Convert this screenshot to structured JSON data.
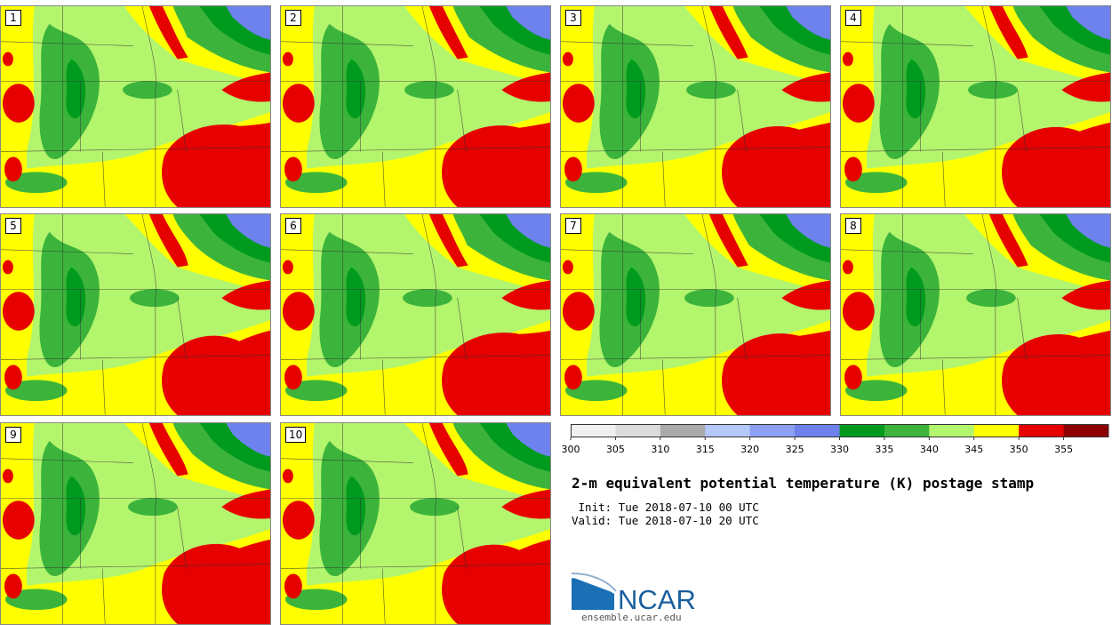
{
  "title": "2-m equivalent potential temperature (K) postage stamp",
  "init_line": " Init: Tue 2018-07-10 00 UTC",
  "valid_line": "Valid: Tue 2018-07-10 20 UTC",
  "members": [
    "1",
    "2",
    "3",
    "4",
    "5",
    "6",
    "7",
    "8",
    "9",
    "10"
  ],
  "colorbar": {
    "colors": [
      "#f0f0f0",
      "#dcdcdc",
      "#aaaaaa",
      "#b4c8fa",
      "#8ca0f5",
      "#6e82ee",
      "#009b1e",
      "#3cb43c",
      "#b4f56e",
      "#ffff00",
      "#e60000",
      "#8c0000"
    ],
    "ticks": [
      "300",
      "305",
      "310",
      "315",
      "320",
      "325",
      "330",
      "335",
      "340",
      "345",
      "350",
      "355"
    ]
  },
  "colors": {
    "yellow": "#ffff00",
    "light_green": "#b4f56e",
    "green": "#3cb43c",
    "dark_green": "#009b1e",
    "red": "#e60000",
    "blue": "#6e82ee"
  },
  "logo": {
    "name": "NCAR",
    "url_text": "ensemble.ucar.edu"
  }
}
